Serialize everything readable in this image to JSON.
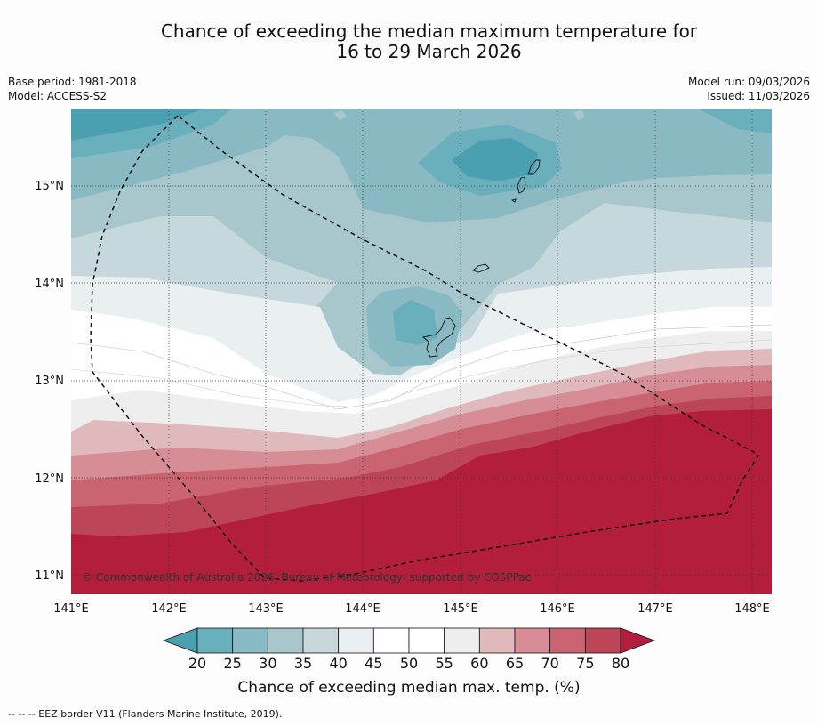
{
  "title_line1": "Chance of exceeding the median maximum temperature for",
  "title_line2": "16 to 29 March 2026",
  "base_period": "Base period: 1981-2018",
  "model": "Model: ACCESS-S2",
  "model_run": "Model run: 09/03/2026",
  "issued": "Issued: 11/03/2026",
  "copyright": "© Commonwealth of Australia 2026, Bureau of Meteorology, supported by COSPPac",
  "footnote": "--  --  -- EEZ border V11 (Flanders Marine Institute, 2019).",
  "map": {
    "lat_labels": [
      "15°N",
      "14°N",
      "13°N",
      "12°N",
      "11°N"
    ],
    "lon_labels": [
      "141°E",
      "142°E",
      "143°E",
      "144°E",
      "145°E",
      "146°E",
      "147°E",
      "148°E"
    ],
    "lat_range": [
      10.8,
      15.8
    ],
    "lon_range": [
      141.0,
      148.2
    ]
  },
  "colorbar": {
    "title": "Chance of exceeding median max. temp. (%)",
    "ticks": [
      "20",
      "25",
      "30",
      "35",
      "40",
      "45",
      "50",
      "55",
      "60",
      "65",
      "70",
      "75",
      "80"
    ],
    "colors": [
      "#4aa0b1",
      "#6aafbc",
      "#89b9c3",
      "#a7c7cc",
      "#c6d8dc",
      "#eaf0f1",
      "#ffffff",
      "#ffffff",
      "#eeeeee",
      "#e0b9bd",
      "#d78d96",
      "#ca6470",
      "#bd4558",
      "#b21e3b"
    ]
  }
}
